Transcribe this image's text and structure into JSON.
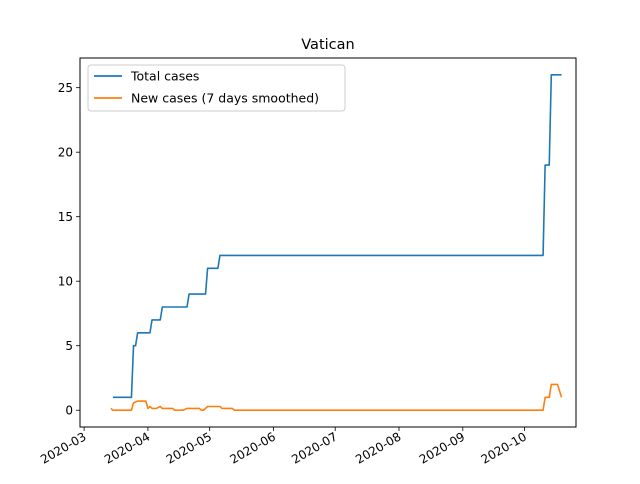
{
  "chart_data": {
    "type": "line",
    "title": "Vatican",
    "xlabel": "",
    "ylabel": "",
    "x_range": [
      "2020-02-28",
      "2020-10-26"
    ],
    "ylim": [
      -1.3,
      27.3
    ],
    "x_ticks": [
      {
        "date": "2020-03-01",
        "label": "2020-03"
      },
      {
        "date": "2020-04-01",
        "label": "2020-04"
      },
      {
        "date": "2020-05-01",
        "label": "2020-05"
      },
      {
        "date": "2020-06-01",
        "label": "2020-06"
      },
      {
        "date": "2020-07-01",
        "label": "2020-07"
      },
      {
        "date": "2020-08-01",
        "label": "2020-08"
      },
      {
        "date": "2020-09-01",
        "label": "2020-09"
      },
      {
        "date": "2020-10-01",
        "label": "2020-10"
      }
    ],
    "y_ticks": [
      0,
      5,
      10,
      15,
      20,
      25
    ],
    "grid": false,
    "legend_position": "top-left",
    "series": [
      {
        "name": "Total cases",
        "color": "#1f77b4",
        "points": [
          [
            "2020-03-15",
            1
          ],
          [
            "2020-03-24",
            1
          ],
          [
            "2020-03-25",
            5
          ],
          [
            "2020-03-26",
            5
          ],
          [
            "2020-03-27",
            6
          ],
          [
            "2020-04-02",
            6
          ],
          [
            "2020-04-03",
            7
          ],
          [
            "2020-04-07",
            7
          ],
          [
            "2020-04-08",
            8
          ],
          [
            "2020-04-20",
            8
          ],
          [
            "2020-04-21",
            9
          ],
          [
            "2020-04-29",
            9
          ],
          [
            "2020-04-30",
            11
          ],
          [
            "2020-05-05",
            11
          ],
          [
            "2020-05-06",
            12
          ],
          [
            "2020-10-10",
            12
          ],
          [
            "2020-10-11",
            19
          ],
          [
            "2020-10-13",
            19
          ],
          [
            "2020-10-14",
            26
          ],
          [
            "2020-10-19",
            26
          ]
        ]
      },
      {
        "name": "New cases (7 days smoothed)",
        "color": "#ff7f0e",
        "points": [
          [
            "2020-03-14",
            0.14
          ],
          [
            "2020-03-15",
            0.0
          ],
          [
            "2020-03-24",
            0.0
          ],
          [
            "2020-03-25",
            0.57
          ],
          [
            "2020-03-27",
            0.71
          ],
          [
            "2020-03-31",
            0.71
          ],
          [
            "2020-04-01",
            0.14
          ],
          [
            "2020-04-02",
            0.29
          ],
          [
            "2020-04-03",
            0.14
          ],
          [
            "2020-04-05",
            0.14
          ],
          [
            "2020-04-07",
            0.29
          ],
          [
            "2020-04-08",
            0.14
          ],
          [
            "2020-04-13",
            0.14
          ],
          [
            "2020-04-14",
            0.0
          ],
          [
            "2020-04-18",
            0.0
          ],
          [
            "2020-04-20",
            0.14
          ],
          [
            "2020-04-26",
            0.14
          ],
          [
            "2020-04-27",
            0.0
          ],
          [
            "2020-04-28",
            0.0
          ],
          [
            "2020-04-30",
            0.29
          ],
          [
            "2020-05-06",
            0.29
          ],
          [
            "2020-05-07",
            0.14
          ],
          [
            "2020-05-12",
            0.14
          ],
          [
            "2020-05-13",
            0.0
          ],
          [
            "2020-10-10",
            0.0
          ],
          [
            "2020-10-11",
            1.0
          ],
          [
            "2020-10-13",
            1.0
          ],
          [
            "2020-10-14",
            2.0
          ],
          [
            "2020-10-17",
            2.0
          ],
          [
            "2020-10-19",
            1.0
          ]
        ]
      }
    ]
  }
}
